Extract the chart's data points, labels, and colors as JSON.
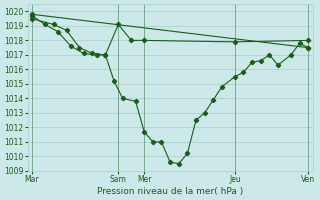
{
  "title": "Pression niveau de la mer( hPa )",
  "bg_color": "#cce8e8",
  "grid_color": "#aacccc",
  "line_color": "#1a5c1a",
  "ylim": [
    1009,
    1020.5
  ],
  "yticks": [
    1009,
    1010,
    1011,
    1012,
    1013,
    1014,
    1015,
    1016,
    1017,
    1018,
    1019,
    1020
  ],
  "xlim": [
    0,
    132
  ],
  "xtick_positions": [
    2,
    42,
    54,
    96,
    130
  ],
  "xtick_labels": [
    "Mar",
    "Sam",
    "Mer",
    "Jeu",
    "Ven"
  ],
  "vline_positions": [
    2,
    42,
    54,
    96,
    130
  ],
  "series1_x": [
    2,
    130
  ],
  "series1_y": [
    1019.8,
    1017.5
  ],
  "series2_x": [
    2,
    12,
    18,
    24,
    30,
    36,
    42,
    48,
    54,
    96,
    130
  ],
  "series2_y": [
    1019.5,
    1019.1,
    1018.7,
    1017.5,
    1017.1,
    1017.0,
    1019.1,
    1018.0,
    1018.0,
    1017.9,
    1018.0
  ],
  "series3_x": [
    2,
    8,
    14,
    20,
    26,
    32,
    36,
    40,
    44,
    50,
    54,
    58,
    62,
    66,
    70,
    74,
    78,
    82,
    86,
    90,
    96,
    100,
    104,
    108,
    112,
    116,
    122,
    126,
    130
  ],
  "series3_y": [
    1019.7,
    1019.1,
    1018.6,
    1017.6,
    1017.1,
    1017.0,
    1017.0,
    1015.2,
    1014.0,
    1013.8,
    1011.7,
    1011.0,
    1011.0,
    1009.6,
    1009.5,
    1010.2,
    1012.5,
    1013.0,
    1013.9,
    1014.8,
    1015.5,
    1015.8,
    1016.5,
    1016.6,
    1017.0,
    1016.3,
    1017.0,
    1017.8,
    1017.5
  ]
}
